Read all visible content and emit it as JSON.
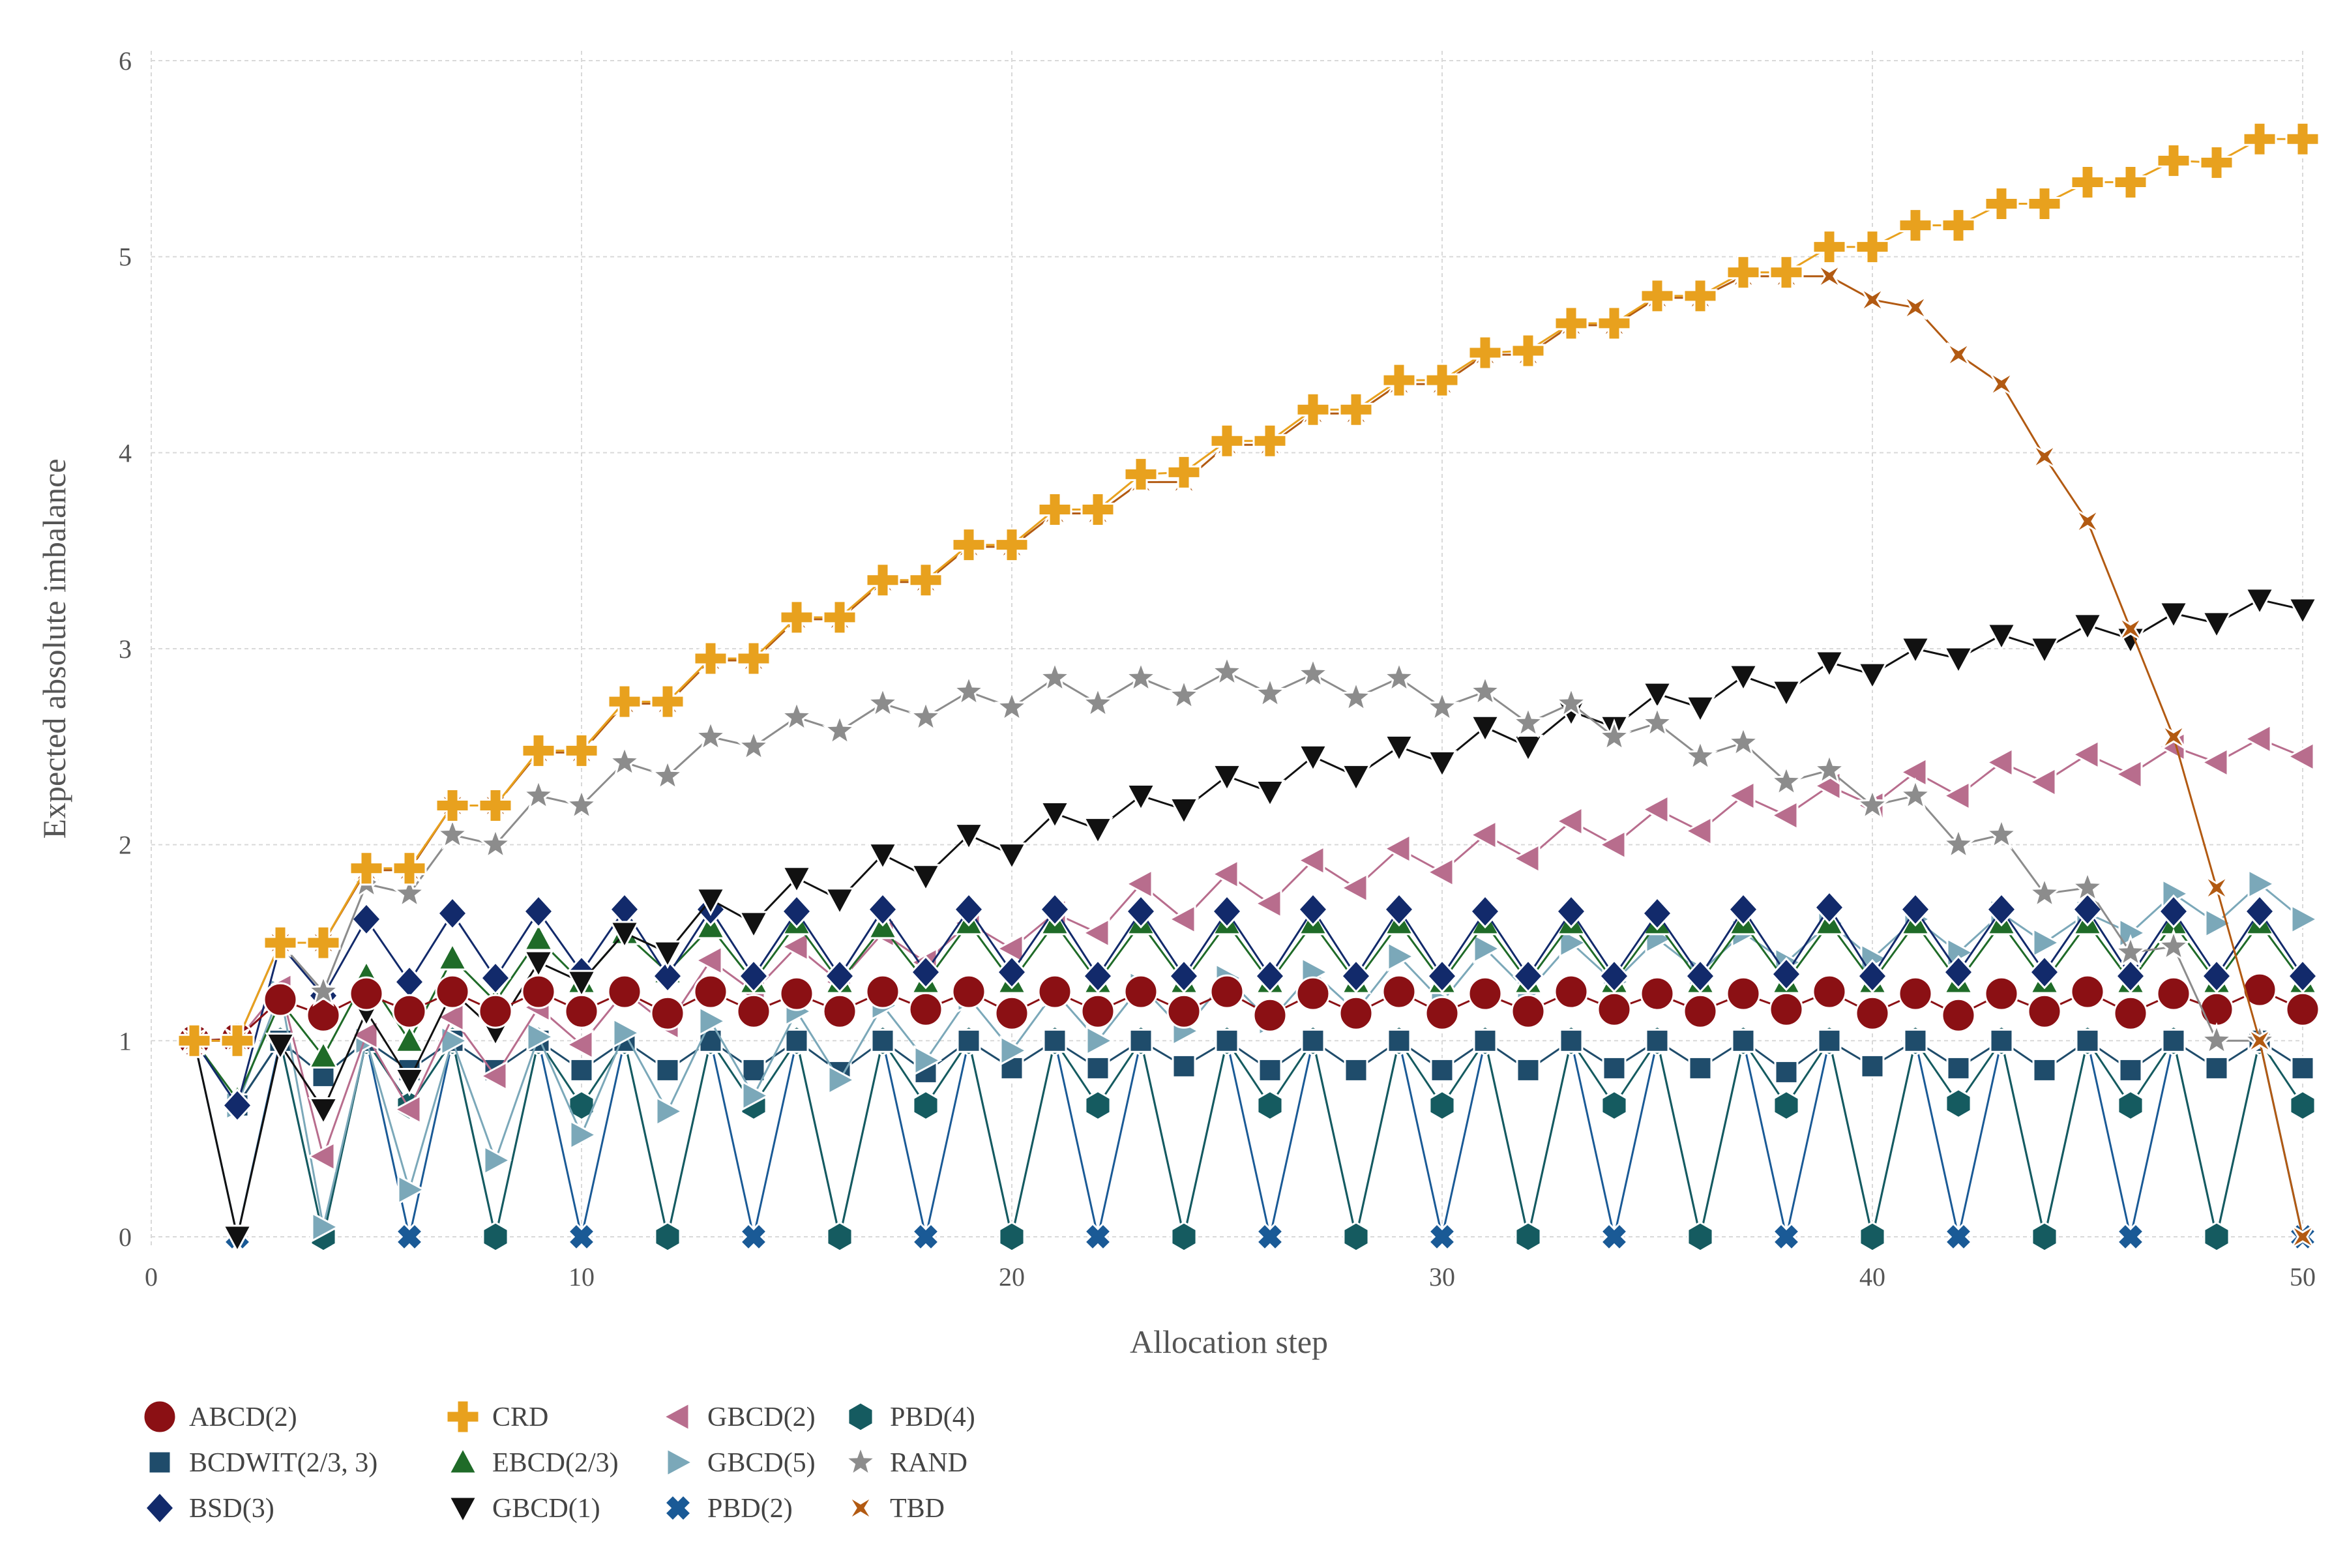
{
  "chart_data": {
    "type": "line",
    "title": "",
    "xlabel": "Allocation step",
    "ylabel": "Expected absolute imbalance",
    "xlim": [
      0,
      50
    ],
    "ylim": [
      -0.05,
      6.05
    ],
    "xticks": [
      0,
      10,
      20,
      30,
      40,
      50
    ],
    "yticks": [
      0,
      1,
      2,
      3,
      4,
      5,
      6
    ],
    "grid": true,
    "legend_position": "bottom-left",
    "x": [
      1,
      2,
      3,
      4,
      5,
      6,
      7,
      8,
      9,
      10,
      11,
      12,
      13,
      14,
      15,
      16,
      17,
      18,
      19,
      20,
      21,
      22,
      23,
      24,
      25,
      26,
      27,
      28,
      29,
      30,
      31,
      32,
      33,
      34,
      35,
      36,
      37,
      38,
      39,
      40,
      41,
      42,
      43,
      44,
      45,
      46,
      47,
      48,
      49,
      50
    ],
    "series": [
      {
        "name": "PBD(2)",
        "marker": "x-cross",
        "color": "#1a5a96",
        "values": [
          1,
          0,
          1,
          0,
          1,
          0,
          1,
          0,
          1,
          0,
          1,
          0,
          1,
          0,
          1,
          0,
          1,
          0,
          1,
          0,
          1,
          0,
          1,
          0,
          1,
          0,
          1,
          0,
          1,
          0,
          1,
          0,
          1,
          0,
          1,
          0,
          1,
          0,
          1,
          0,
          1,
          0,
          1,
          0,
          1,
          0,
          1,
          0,
          1,
          0
        ]
      },
      {
        "name": "PBD(4)",
        "marker": "hexagon",
        "color": "#155b60",
        "values": [
          1,
          0.67,
          1,
          0,
          1,
          0.67,
          1,
          0,
          1,
          0.67,
          1,
          0,
          1,
          0.67,
          1,
          0,
          1,
          0.67,
          1,
          0,
          1,
          0.67,
          1,
          0,
          1,
          0.67,
          1,
          0,
          1,
          0.67,
          1,
          0,
          1,
          0.67,
          1,
          0,
          1,
          0.67,
          1,
          0,
          1,
          0.68,
          1,
          0,
          1,
          0.67,
          1,
          0,
          1,
          0.67
        ]
      },
      {
        "name": "BCDWIT(2/3, 3)",
        "marker": "square",
        "color": "#1f4c6b",
        "values": [
          1,
          0.67,
          1,
          0.82,
          1,
          0.85,
          1,
          0.85,
          1,
          0.85,
          1,
          0.85,
          1,
          0.85,
          1,
          0.84,
          1,
          0.84,
          1,
          0.86,
          1,
          0.86,
          1,
          0.87,
          1,
          0.85,
          1,
          0.85,
          1,
          0.85,
          1,
          0.85,
          1,
          0.86,
          1,
          0.86,
          1,
          0.84,
          1,
          0.87,
          1,
          0.86,
          1,
          0.85,
          1,
          0.85,
          1,
          0.86,
          1,
          0.86
        ]
      },
      {
        "name": "GBCD(5)",
        "marker": "triangle-right",
        "color": "#7ba8b9",
        "values": [
          1,
          0.67,
          1.25,
          0.05,
          1.0,
          0.24,
          1.0,
          0.39,
          1.02,
          0.52,
          1.04,
          0.64,
          1.1,
          0.72,
          1.15,
          0.8,
          1.18,
          0.9,
          1.22,
          0.95,
          1.25,
          1.0,
          1.28,
          1.05,
          1.32,
          1.1,
          1.35,
          1.15,
          1.43,
          1.2,
          1.47,
          1.25,
          1.5,
          1.3,
          1.52,
          1.35,
          1.55,
          1.4,
          1.6,
          1.42,
          1.62,
          1.45,
          1.65,
          1.5,
          1.65,
          1.55,
          1.75,
          1.6,
          1.8,
          1.62
        ]
      },
      {
        "name": "GBCD(2)",
        "marker": "triangle-left",
        "color": "#b86d8d",
        "values": [
          1,
          1.0,
          1.27,
          0.41,
          1.03,
          0.65,
          1.12,
          0.82,
          1.17,
          0.98,
          1.25,
          1.08,
          1.41,
          1.25,
          1.48,
          1.3,
          1.55,
          1.4,
          1.6,
          1.47,
          1.65,
          1.55,
          1.8,
          1.62,
          1.85,
          1.7,
          1.92,
          1.78,
          1.98,
          1.86,
          2.05,
          1.93,
          2.12,
          2.0,
          2.18,
          2.07,
          2.25,
          2.15,
          2.3,
          2.2,
          2.37,
          2.25,
          2.42,
          2.32,
          2.46,
          2.36,
          2.5,
          2.42,
          2.54,
          2.45
        ]
      },
      {
        "name": "EBCD(2/3)",
        "marker": "triangle-up",
        "color": "#1f6b28",
        "values": [
          1,
          0.7,
          1.2,
          0.92,
          1.33,
          1.0,
          1.42,
          1.2,
          1.52,
          1.3,
          1.55,
          1.35,
          1.58,
          1.3,
          1.6,
          1.3,
          1.58,
          1.3,
          1.6,
          1.3,
          1.6,
          1.3,
          1.6,
          1.3,
          1.6,
          1.3,
          1.6,
          1.3,
          1.6,
          1.3,
          1.6,
          1.3,
          1.6,
          1.3,
          1.6,
          1.3,
          1.6,
          1.3,
          1.6,
          1.3,
          1.6,
          1.3,
          1.6,
          1.3,
          1.6,
          1.3,
          1.6,
          1.3,
          1.6,
          1.3
        ]
      },
      {
        "name": "BSD(3)",
        "marker": "diamond",
        "color": "#122a6b",
        "values": [
          1,
          0.67,
          1.49,
          1.23,
          1.62,
          1.3,
          1.65,
          1.32,
          1.66,
          1.35,
          1.67,
          1.33,
          1.67,
          1.33,
          1.66,
          1.33,
          1.67,
          1.35,
          1.67,
          1.35,
          1.67,
          1.33,
          1.66,
          1.33,
          1.66,
          1.33,
          1.67,
          1.33,
          1.67,
          1.33,
          1.66,
          1.33,
          1.66,
          1.33,
          1.65,
          1.33,
          1.67,
          1.34,
          1.68,
          1.33,
          1.67,
          1.35,
          1.67,
          1.35,
          1.67,
          1.33,
          1.66,
          1.33,
          1.66,
          1.33
        ]
      },
      {
        "name": "GBCD(1)",
        "marker": "triangle-down",
        "color": "#111111",
        "values": [
          1,
          0,
          0.98,
          0.65,
          1.15,
          0.8,
          1.25,
          1.05,
          1.4,
          1.3,
          1.55,
          1.45,
          1.72,
          1.6,
          1.83,
          1.72,
          1.95,
          1.84,
          2.05,
          1.95,
          2.16,
          2.08,
          2.25,
          2.18,
          2.35,
          2.27,
          2.45,
          2.35,
          2.5,
          2.42,
          2.6,
          2.5,
          2.68,
          2.6,
          2.77,
          2.7,
          2.86,
          2.78,
          2.93,
          2.87,
          3.0,
          2.95,
          3.07,
          3.0,
          3.12,
          3.05,
          3.18,
          3.13,
          3.25,
          3.2
        ]
      },
      {
        "name": "ABCD(2)",
        "marker": "circle",
        "color": "#8b1014",
        "values": [
          1,
          1.01,
          1.21,
          1.13,
          1.24,
          1.15,
          1.25,
          1.15,
          1.25,
          1.15,
          1.25,
          1.14,
          1.25,
          1.15,
          1.24,
          1.15,
          1.25,
          1.16,
          1.25,
          1.14,
          1.25,
          1.15,
          1.25,
          1.15,
          1.25,
          1.13,
          1.24,
          1.14,
          1.25,
          1.14,
          1.24,
          1.15,
          1.25,
          1.16,
          1.24,
          1.15,
          1.24,
          1.16,
          1.25,
          1.14,
          1.24,
          1.13,
          1.24,
          1.15,
          1.25,
          1.14,
          1.24,
          1.16,
          1.26,
          1.16
        ]
      },
      {
        "name": "RAND",
        "marker": "star",
        "color": "#8c8c8c",
        "values": [
          1,
          1.0,
          1.5,
          1.25,
          1.8,
          1.75,
          2.05,
          2.0,
          2.25,
          2.2,
          2.42,
          2.35,
          2.55,
          2.5,
          2.65,
          2.58,
          2.72,
          2.65,
          2.78,
          2.7,
          2.85,
          2.72,
          2.85,
          2.76,
          2.88,
          2.77,
          2.87,
          2.75,
          2.85,
          2.7,
          2.78,
          2.62,
          2.72,
          2.55,
          2.62,
          2.45,
          2.52,
          2.32,
          2.38,
          2.2,
          2.25,
          2.0,
          2.05,
          1.75,
          1.78,
          1.45,
          1.48,
          1.0,
          1.0,
          null
        ]
      },
      {
        "name": "TBD",
        "marker": "x-star",
        "color": "#b25a12",
        "values": [
          1,
          1.0,
          1.5,
          1.5,
          1.87,
          1.87,
          2.2,
          2.2,
          2.47,
          2.47,
          2.72,
          2.72,
          2.94,
          2.94,
          3.15,
          3.15,
          3.34,
          3.34,
          3.52,
          3.52,
          3.69,
          3.69,
          3.85,
          3.85,
          4.04,
          4.04,
          4.2,
          4.2,
          4.35,
          4.35,
          4.5,
          4.5,
          4.65,
          4.65,
          4.79,
          4.79,
          4.9,
          4.9,
          4.9,
          4.78,
          4.74,
          4.5,
          4.35,
          3.98,
          3.65,
          3.1,
          2.55,
          1.78,
          1.0,
          0
        ]
      },
      {
        "name": "CRD",
        "marker": "plus",
        "color": "#e8a11e",
        "values": [
          1,
          1.0,
          1.5,
          1.5,
          1.88,
          1.88,
          2.2,
          2.2,
          2.48,
          2.48,
          2.73,
          2.73,
          2.95,
          2.95,
          3.16,
          3.16,
          3.35,
          3.35,
          3.53,
          3.53,
          3.71,
          3.71,
          3.89,
          3.9,
          4.06,
          4.06,
          4.22,
          4.22,
          4.37,
          4.37,
          4.51,
          4.52,
          4.66,
          4.66,
          4.8,
          4.8,
          4.92,
          4.92,
          5.05,
          5.05,
          5.16,
          5.16,
          5.27,
          5.27,
          5.38,
          5.38,
          5.49,
          5.48,
          5.6,
          5.6
        ]
      }
    ]
  },
  "legend": {
    "items": [
      {
        "label": "ABCD(2)",
        "series": "ABCD(2)"
      },
      {
        "label": "BCDWIT(2/3, 3)",
        "series": "BCDWIT(2/3, 3)"
      },
      {
        "label": "BSD(3)",
        "series": "BSD(3)"
      },
      {
        "label": "CRD",
        "series": "CRD"
      },
      {
        "label": "EBCD(2/3)",
        "series": "EBCD(2/3)"
      },
      {
        "label": "GBCD(1)",
        "series": "GBCD(1)"
      },
      {
        "label": "GBCD(2)",
        "series": "GBCD(2)"
      },
      {
        "label": "GBCD(5)",
        "series": "GBCD(5)"
      },
      {
        "label": "PBD(2)",
        "series": "PBD(2)"
      },
      {
        "label": "PBD(4)",
        "series": "PBD(4)"
      },
      {
        "label": "RAND",
        "series": "RAND"
      },
      {
        "label": "TBD",
        "series": "TBD"
      }
    ]
  }
}
